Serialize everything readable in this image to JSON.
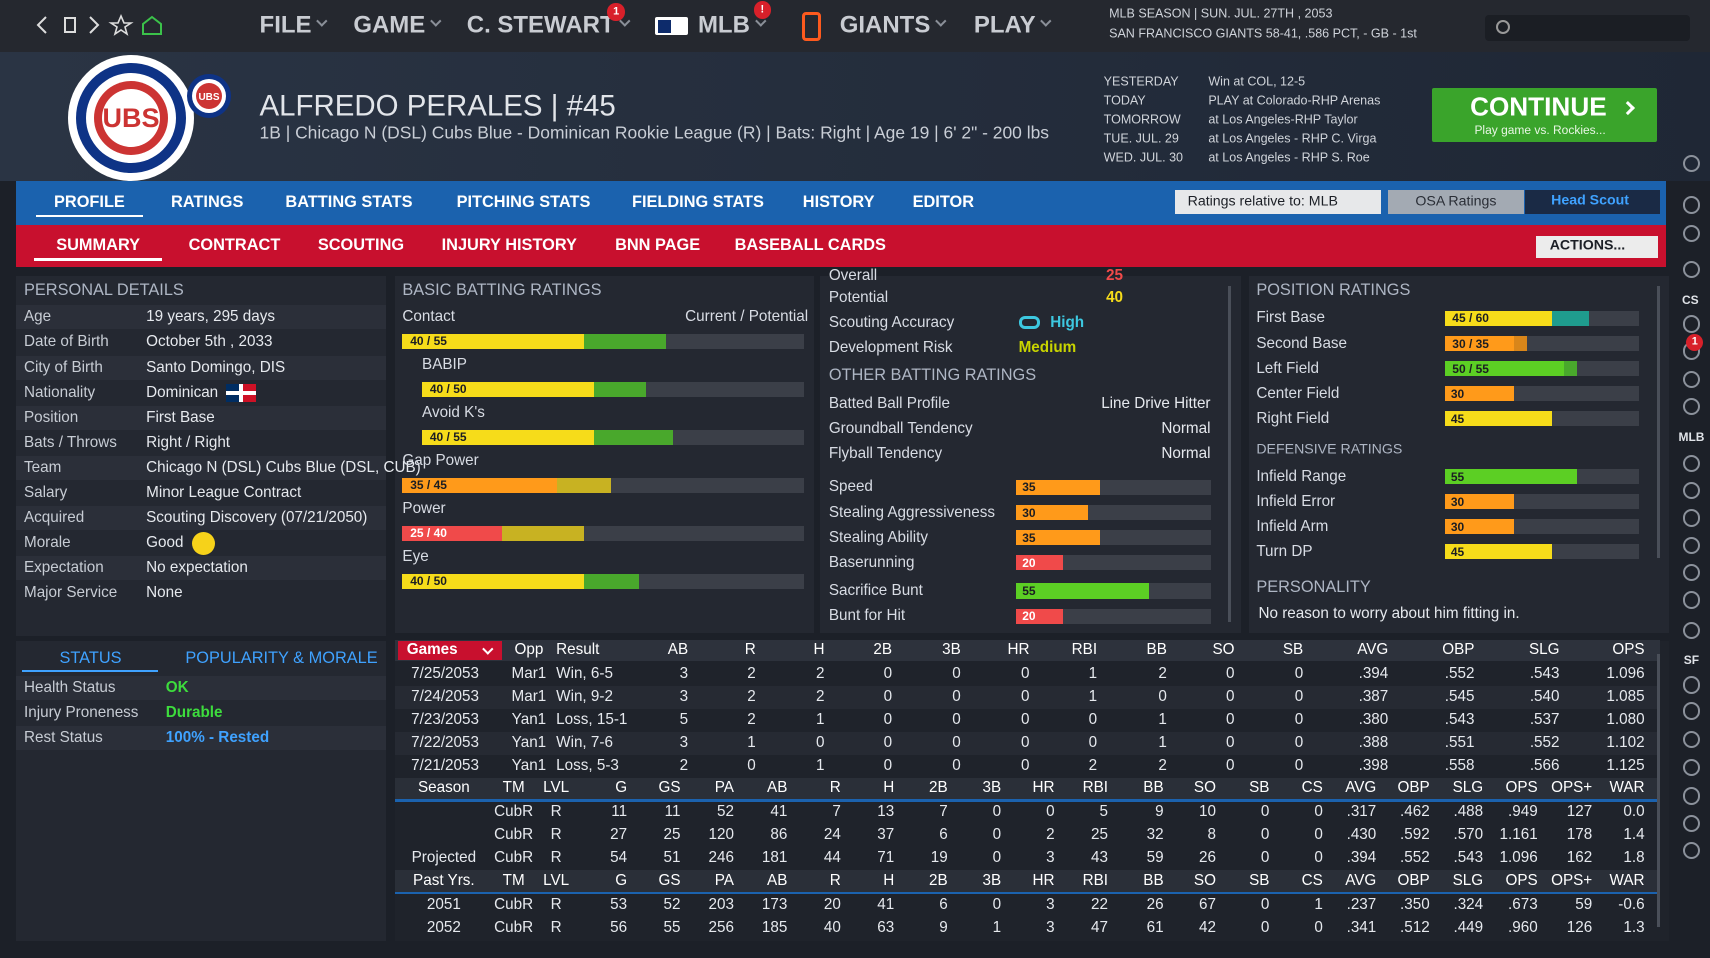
{
  "topbar": {
    "menus": [
      "FILE",
      "GAME",
      "C. STEWART",
      "MLB",
      "GIANTS",
      "PLAY"
    ],
    "badges": [
      "1",
      "!"
    ],
    "season": "MLB SEASON  |  SUN. JUL. 27TH , 2053",
    "team_record": "SAN FRANCISCO GIANTS  58-41, .586 PCT, - GB - 1st"
  },
  "player": {
    "logo_text": "UBS",
    "name": "ALFREDO PERALES  |  #45",
    "details": "1B | Chicago N (DSL) Cubs Blue - Dominican Rookie League (R)  |  Bats: Right  |  Age 19  |  6' 2\" - 200 lbs"
  },
  "schedule": [
    [
      "YESTERDAY",
      "Win at COL, 12-5"
    ],
    [
      "TODAY",
      "PLAY at Colorado-RHP Arenas"
    ],
    [
      "TOMORROW",
      "at Los Angeles-RHP Taylor"
    ],
    [
      "TUE. JUL. 29",
      "at Los Angeles - RHP C. Virga"
    ],
    [
      "WED. JUL. 30",
      "at Los Angeles - RHP S. Roe"
    ]
  ],
  "continue": {
    "label": "CONTINUE",
    "sub": "Play game vs. Rockies..."
  },
  "tabs": [
    "PROFILE",
    "RATINGS",
    "BATTING STATS",
    "PITCHING STATS",
    "FIELDING STATS",
    "HISTORY",
    "EDITOR"
  ],
  "subtabs": [
    "SUMMARY",
    "CONTRACT",
    "SCOUTING",
    "INJURY HISTORY",
    "BNN PAGE",
    "BASEBALL CARDS"
  ],
  "ratings_relative": "Ratings relative to: MLB",
  "osa": "OSA Ratings",
  "head_scout": "Head Scout",
  "actions": "ACTIONS...",
  "side": {
    "labels": [
      "CS",
      "MLB",
      "SF"
    ],
    "badge": "1"
  },
  "rating_scale": [
    0,
    80
  ],
  "personal_details": {
    "title": "PERSONAL DETAILS",
    "rows": [
      [
        "Age",
        "19 years, 295 days"
      ],
      [
        "Date of Birth",
        "October 5th , 2033"
      ],
      [
        "City of Birth",
        "Santo Domingo, DIS"
      ],
      [
        "Nationality",
        "Dominican"
      ],
      [
        "Position",
        "First Base"
      ],
      [
        "Bats / Throws",
        "Right / Right"
      ],
      [
        "Team",
        "Chicago N (DSL) Cubs Blue (DSL, CUB)"
      ],
      [
        "Salary",
        "Minor League Contract"
      ],
      [
        "Acquired",
        "Scouting Discovery (07/21/2050)"
      ],
      [
        "Morale",
        "Good"
      ],
      [
        "Expectation",
        "No expectation"
      ],
      [
        "Major Service",
        "None"
      ]
    ]
  },
  "basic_batting": {
    "title": "BASIC BATTING RATINGS",
    "header": "Current / Potential",
    "ratings": [
      {
        "name": "Contact",
        "label": "40 / 55",
        "current": 40,
        "potential": 55
      },
      {
        "name": "BABIP",
        "label": "40 / 50",
        "current": 40,
        "potential": 50
      },
      {
        "name": "Avoid K's",
        "label": "40 / 55",
        "current": 40,
        "potential": 55
      },
      {
        "name": "Gap Power",
        "label": "35 / 45",
        "current": 35,
        "potential": 45
      },
      {
        "name": "Power",
        "label": "25 / 40",
        "current": 25,
        "potential": 40
      },
      {
        "name": "Eye",
        "label": "40 / 50",
        "current": 40,
        "potential": 50
      }
    ]
  },
  "overview": {
    "overall_label": "Overall",
    "overall": 25,
    "potential_label": "Potential",
    "potential": 40,
    "accuracy_label": "Scouting Accuracy",
    "accuracy": "High",
    "risk_label": "Development Risk",
    "risk": "Medium"
  },
  "other_batting": {
    "title": "OTHER BATTING RATINGS",
    "profile": [
      [
        "Batted Ball Profile",
        "Line Drive Hitter"
      ],
      [
        "Groundball Tendency",
        "Normal"
      ],
      [
        "Flyball Tendency",
        "Normal"
      ]
    ],
    "ratings": [
      {
        "name": "Speed",
        "current": 35
      },
      {
        "name": "Stealing Aggressiveness",
        "current": 30
      },
      {
        "name": "Stealing Ability",
        "current": 35
      },
      {
        "name": "Baserunning",
        "current": 20
      },
      {
        "name": "Sacrifice Bunt",
        "current": 55
      },
      {
        "name": "Bunt for Hit",
        "current": 20
      }
    ]
  },
  "position_ratings": {
    "title": "POSITION RATINGS",
    "ratings": [
      {
        "name": "First Base",
        "label": "45 / 60",
        "current": 45,
        "potential": 60
      },
      {
        "name": "Second Base",
        "label": "30 / 35",
        "current": 30,
        "potential": 35
      },
      {
        "name": "Left Field",
        "label": "50 / 55",
        "current": 50,
        "potential": 55
      },
      {
        "name": "Center Field",
        "current": 30
      },
      {
        "name": "Right Field",
        "current": 45
      }
    ],
    "defensive_title": "DEFENSIVE RATINGS",
    "defensive": [
      {
        "name": "Infield Range",
        "current": 55
      },
      {
        "name": "Infield Error",
        "current": 30
      },
      {
        "name": "Infield Arm",
        "current": 30
      },
      {
        "name": "Turn DP",
        "current": 45
      }
    ],
    "personality_title": "PERSONALITY",
    "personality": "No reason to worry about him fitting in."
  },
  "status": {
    "tabs": [
      "STATUS",
      "POPULARITY & MORALE"
    ],
    "rows": [
      [
        "Health Status",
        "OK"
      ],
      [
        "Injury Proneness",
        "Durable"
      ],
      [
        "Rest Status",
        "100% - Rested"
      ]
    ]
  },
  "game_log": {
    "header": [
      "Games",
      "Opp",
      "Result",
      "AB",
      "R",
      "H",
      "2B",
      "3B",
      "HR",
      "RBI",
      "BB",
      "SO",
      "SB",
      "AVG",
      "OBP",
      "SLG",
      "OPS"
    ],
    "rows": [
      [
        "7/25/2053",
        "Mar1",
        "Win, 6-5",
        "3",
        "2",
        "2",
        "0",
        "0",
        "0",
        "1",
        "2",
        "0",
        "0",
        ".394",
        ".552",
        ".543",
        "1.096"
      ],
      [
        "7/24/2053",
        "Mar1",
        "Win, 9-2",
        "3",
        "2",
        "2",
        "0",
        "0",
        "0",
        "1",
        "0",
        "0",
        "0",
        ".387",
        ".545",
        ".540",
        "1.085"
      ],
      [
        "7/23/2053",
        "Yan1",
        "Loss, 15-1",
        "5",
        "2",
        "1",
        "0",
        "0",
        "0",
        "0",
        "1",
        "0",
        "0",
        ".380",
        ".543",
        ".537",
        "1.080"
      ],
      [
        "7/22/2053",
        "Yan1",
        "Win, 7-6",
        "3",
        "1",
        "0",
        "0",
        "0",
        "0",
        "0",
        "1",
        "0",
        "0",
        ".388",
        ".551",
        ".552",
        "1.102"
      ],
      [
        "7/21/2053",
        "Yan1",
        "Loss, 5-3",
        "2",
        "0",
        "1",
        "0",
        "0",
        "0",
        "2",
        "2",
        "0",
        "0",
        ".398",
        ".558",
        ".566",
        "1.125"
      ]
    ]
  },
  "season": {
    "header": [
      "Season",
      "TM",
      "LVL",
      "G",
      "GS",
      "PA",
      "AB",
      "R",
      "H",
      "2B",
      "3B",
      "HR",
      "RBI",
      "BB",
      "SO",
      "SB",
      "CS",
      "AVG",
      "OBP",
      "SLG",
      "OPS",
      "OPS+",
      "WAR"
    ],
    "rows": [
      [
        null,
        "CubR",
        "R",
        "11",
        "11",
        "52",
        "41",
        "7",
        "13",
        "7",
        "0",
        "0",
        "5",
        "9",
        "10",
        "0",
        "0",
        ".317",
        ".462",
        ".488",
        ".949",
        "127",
        "0.0"
      ],
      [
        null,
        "CubR",
        "R",
        "27",
        "25",
        "120",
        "86",
        "24",
        "37",
        "6",
        "0",
        "2",
        "25",
        "32",
        "8",
        "0",
        "0",
        ".430",
        ".592",
        ".570",
        "1.161",
        "178",
        "1.4"
      ],
      [
        "Projected",
        "CubR",
        "R",
        "54",
        "51",
        "246",
        "181",
        "44",
        "71",
        "19",
        "0",
        "3",
        "43",
        "59",
        "26",
        "0",
        "0",
        ".394",
        ".552",
        ".543",
        "1.096",
        "162",
        "1.8"
      ]
    ]
  },
  "past": {
    "header": [
      "Past Yrs.",
      "TM",
      "LVL",
      "G",
      "GS",
      "PA",
      "AB",
      "R",
      "H",
      "2B",
      "3B",
      "HR",
      "RBI",
      "BB",
      "SO",
      "SB",
      "CS",
      "AVG",
      "OBP",
      "SLG",
      "OPS",
      "OPS+",
      "WAR"
    ],
    "rows": [
      [
        "2051",
        "CubR",
        "R",
        "53",
        "52",
        "203",
        "173",
        "20",
        "41",
        "6",
        "0",
        "3",
        "22",
        "26",
        "67",
        "0",
        "1",
        ".237",
        ".350",
        ".324",
        ".673",
        "59",
        "-0.6"
      ],
      [
        "2052",
        "CubR",
        "R",
        "56",
        "55",
        "256",
        "185",
        "40",
        "63",
        "9",
        "1",
        "3",
        "47",
        "61",
        "42",
        "0",
        "0",
        ".341",
        ".512",
        ".449",
        ".960",
        "126",
        "1.3"
      ]
    ]
  }
}
